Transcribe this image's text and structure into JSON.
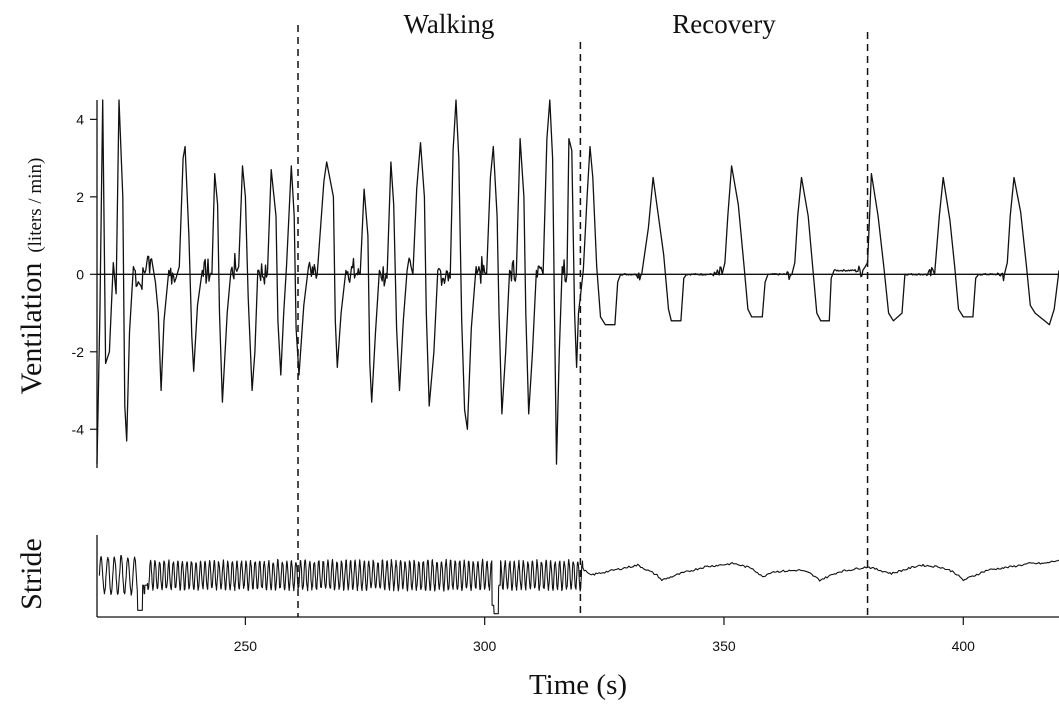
{
  "chart_data": {
    "type": "line",
    "xlabel": "Time (s)",
    "xlim": [
      219,
      420
    ],
    "x_ticks": [
      250,
      300,
      350,
      400
    ],
    "phase_boundaries": [
      261,
      320,
      380
    ],
    "phase_labels": [
      {
        "text": "Walking",
        "x": 291
      },
      {
        "text": "Recovery",
        "x": 350
      }
    ],
    "panels": [
      {
        "name": "ventilation",
        "ylabel_main": "Ventilation",
        "ylabel_unit": "(liters / min)",
        "ylim": [
          -5,
          4.5
        ],
        "y_ticks": [
          4,
          2,
          0,
          -2,
          -4
        ],
        "baseline": 0,
        "series": [
          {
            "points": [
              [
                219.0,
                -4.9
              ],
              [
                219.6,
                -1.0
              ],
              [
                220.2,
                4.5
              ],
              [
                220.8,
                -2.3
              ],
              [
                221.6,
                -2.0
              ],
              [
                222.4,
                0.3
              ],
              [
                223.0,
                -0.5
              ],
              [
                223.6,
                4.5
              ],
              [
                224.4,
                2.0
              ],
              [
                224.8,
                -3.4
              ],
              [
                225.2,
                -4.3
              ],
              [
                225.8,
                -1.5
              ],
              [
                226.6,
                0.2
              ],
              [
                228.2,
                -0.3
              ],
              [
                229.4,
                0.3
              ],
              [
                230.4,
                0.4
              ],
              [
                231.2,
                -0.2
              ],
              [
                231.8,
                -1.0
              ],
              [
                232.4,
                -3.0
              ],
              [
                233.0,
                -1.2
              ],
              [
                234.0,
                0.1
              ],
              [
                235.5,
                -0.1
              ],
              [
                236.2,
                0.2
              ],
              [
                237.0,
                3.0
              ],
              [
                237.4,
                3.3
              ],
              [
                238.2,
                1.0
              ],
              [
                238.8,
                -1.6
              ],
              [
                239.2,
                -2.5
              ],
              [
                240.0,
                -0.8
              ],
              [
                241.0,
                0.1
              ],
              [
                243.0,
                0.0
              ],
              [
                243.6,
                2.6
              ],
              [
                244.2,
                1.8
              ],
              [
                244.6,
                -1.0
              ],
              [
                245.2,
                -3.3
              ],
              [
                246.2,
                -1.0
              ],
              [
                247.0,
                0.1
              ],
              [
                248.6,
                0.2
              ],
              [
                249.4,
                2.8
              ],
              [
                250.0,
                2.0
              ],
              [
                250.6,
                -0.6
              ],
              [
                251.4,
                -3.0
              ],
              [
                252.0,
                -2.0
              ],
              [
                252.6,
                0.1
              ],
              [
                254.6,
                0.0
              ],
              [
                255.4,
                2.7
              ],
              [
                256.4,
                1.5
              ],
              [
                256.8,
                -1.2
              ],
              [
                257.4,
                -2.6
              ],
              [
                258.0,
                -1.0
              ],
              [
                258.6,
                0.2
              ],
              [
                259.6,
                2.8
              ],
              [
                260.2,
                1.5
              ],
              [
                260.6,
                -1.4
              ],
              [
                261.2,
                -2.6
              ],
              [
                262.2,
                -0.8
              ],
              [
                263.2,
                0.2
              ],
              [
                265.0,
                0.0
              ],
              [
                266.4,
                2.4
              ],
              [
                267.0,
                2.9
              ],
              [
                268.4,
                2.0
              ],
              [
                268.8,
                -1.2
              ],
              [
                269.2,
                -2.4
              ],
              [
                270.0,
                -1.0
              ],
              [
                271.0,
                0.1
              ],
              [
                274.0,
                0.0
              ],
              [
                274.8,
                2.2
              ],
              [
                275.6,
                1.0
              ],
              [
                276.0,
                -2.3
              ],
              [
                276.4,
                -3.3
              ],
              [
                277.2,
                -1.5
              ],
              [
                278.0,
                0.1
              ],
              [
                279.6,
                -0.1
              ],
              [
                280.4,
                2.9
              ],
              [
                281.0,
                1.8
              ],
              [
                281.6,
                -1.4
              ],
              [
                282.2,
                -3.0
              ],
              [
                283.0,
                -1.2
              ],
              [
                283.8,
                0.1
              ],
              [
                285.0,
                0.0
              ],
              [
                285.8,
                2.2
              ],
              [
                286.6,
                3.4
              ],
              [
                287.4,
                2.0
              ],
              [
                287.8,
                -1.0
              ],
              [
                288.4,
                -3.4
              ],
              [
                289.4,
                -2.0
              ],
              [
                290.2,
                0.1
              ],
              [
                292.8,
                -0.1
              ],
              [
                293.4,
                3.2
              ],
              [
                294.0,
                4.5
              ],
              [
                294.6,
                3.0
              ],
              [
                295.2,
                -1.2
              ],
              [
                295.8,
                -3.5
              ],
              [
                296.4,
                -4.0
              ],
              [
                297.2,
                -1.4
              ],
              [
                298.2,
                0.2
              ],
              [
                300.4,
                0.0
              ],
              [
                301.2,
                2.5
              ],
              [
                301.8,
                3.3
              ],
              [
                302.6,
                1.5
              ],
              [
                303.0,
                -1.0
              ],
              [
                303.6,
                -3.6
              ],
              [
                304.4,
                -2.0
              ],
              [
                305.2,
                0.1
              ],
              [
                306.6,
                0.0
              ],
              [
                307.4,
                3.5
              ],
              [
                308.2,
                2.0
              ],
              [
                308.6,
                -1.0
              ],
              [
                309.2,
                -3.6
              ],
              [
                310.0,
                -2.0
              ],
              [
                310.8,
                0.1
              ],
              [
                312.2,
                0.0
              ],
              [
                313.0,
                3.5
              ],
              [
                313.6,
                4.5
              ],
              [
                314.2,
                3.0
              ],
              [
                314.6,
                -1.0
              ],
              [
                315.0,
                -4.9
              ],
              [
                315.6,
                -2.0
              ],
              [
                316.2,
                0.2
              ],
              [
                317.2,
                0.0
              ],
              [
                317.6,
                3.5
              ],
              [
                318.2,
                3.2
              ],
              [
                318.8,
                -1.0
              ],
              [
                319.2,
                -2.4
              ],
              [
                319.6,
                -1.0
              ],
              [
                320.6,
                0.1
              ],
              [
                321.4,
                2.0
              ],
              [
                322.0,
                3.3
              ],
              [
                322.6,
                2.5
              ],
              [
                323.4,
                0.2
              ],
              [
                324.2,
                -1.1
              ],
              [
                325.2,
                -1.3
              ],
              [
                327.2,
                -1.3
              ],
              [
                327.8,
                -0.2
              ],
              [
                328.4,
                0.0
              ],
              [
                332.8,
                0.0
              ],
              [
                333.4,
                0.5
              ],
              [
                334.2,
                1.2
              ],
              [
                335.2,
                2.5
              ],
              [
                336.2,
                1.6
              ],
              [
                337.4,
                0.5
              ],
              [
                338.4,
                -0.9
              ],
              [
                339.0,
                -1.2
              ],
              [
                341.0,
                -1.2
              ],
              [
                341.6,
                -0.1
              ],
              [
                342.2,
                0.0
              ],
              [
                349.6,
                0.0
              ],
              [
                350.2,
                0.3
              ],
              [
                350.8,
                1.5
              ],
              [
                351.6,
                2.8
              ],
              [
                353.0,
                1.8
              ],
              [
                354.2,
                0.2
              ],
              [
                355.0,
                -0.9
              ],
              [
                355.8,
                -1.1
              ],
              [
                358.0,
                -1.1
              ],
              [
                358.6,
                -0.2
              ],
              [
                359.2,
                0.0
              ],
              [
                364.2,
                0.0
              ],
              [
                364.8,
                0.3
              ],
              [
                365.4,
                1.5
              ],
              [
                366.2,
                2.5
              ],
              [
                367.6,
                1.5
              ],
              [
                368.6,
                0.1
              ],
              [
                369.4,
                -1.0
              ],
              [
                370.2,
                -1.2
              ],
              [
                372.0,
                -1.2
              ],
              [
                372.4,
                -0.1
              ],
              [
                373.0,
                0.1
              ],
              [
                379.0,
                0.1
              ],
              [
                380.0,
                0.3
              ],
              [
                380.8,
                2.6
              ],
              [
                382.2,
                1.5
              ],
              [
                383.4,
                0.2
              ],
              [
                384.4,
                -1.0
              ],
              [
                385.4,
                -1.2
              ],
              [
                387.2,
                -1.0
              ],
              [
                387.8,
                0.0
              ],
              [
                394.0,
                0.0
              ],
              [
                395.0,
                1.5
              ],
              [
                395.8,
                2.5
              ],
              [
                397.2,
                1.4
              ],
              [
                398.2,
                0.2
              ],
              [
                399.0,
                -0.9
              ],
              [
                400.0,
                -1.1
              ],
              [
                402.0,
                -1.1
              ],
              [
                402.6,
                -0.1
              ],
              [
                403.2,
                0.0
              ],
              [
                408.6,
                0.0
              ],
              [
                409.2,
                0.3
              ],
              [
                409.8,
                1.5
              ],
              [
                410.6,
                2.5
              ],
              [
                412.0,
                1.6
              ],
              [
                413.2,
                0.2
              ],
              [
                414.0,
                -0.8
              ],
              [
                415.0,
                -1.0
              ],
              [
                417.0,
                -1.2
              ],
              [
                418.0,
                -1.3
              ],
              [
                419.0,
                -0.9
              ],
              [
                420.0,
                0.1
              ]
            ]
          }
        ]
      },
      {
        "name": "stride",
        "ylabel_main": "Stride",
        "ylabel_unit": "",
        "ylim": [
          -1.25,
          1.2
        ],
        "series": [
          {
            "walking_segments": [
              {
                "x_start": 219.5,
                "x_end": 229.0,
                "cycle_s": 1.4,
                "amplitude": 0.55
              },
              {
                "x_start": 229.0,
                "x_end": 320.5,
                "cycle_s": 0.95,
                "amplitude": 0.42
              }
            ],
            "points": [
              [
                228.0,
                -1.05
              ],
              [
                229.0,
                -0.3
              ],
              [
                302.0,
                -0.9
              ],
              [
                302.4,
                -1.15
              ],
              [
                302.8,
                -0.3
              ],
              [
                320.5,
                0.2
              ],
              [
                322.0,
                0.0
              ],
              [
                327.0,
                0.15
              ],
              [
                332.0,
                0.3
              ],
              [
                336.0,
                0.0
              ],
              [
                337.0,
                -0.15
              ],
              [
                341.0,
                0.05
              ],
              [
                346.0,
                0.25
              ],
              [
                352.0,
                0.35
              ],
              [
                356.0,
                0.2
              ],
              [
                358.0,
                -0.05
              ],
              [
                360.0,
                0.1
              ],
              [
                366.0,
                0.15
              ],
              [
                368.0,
                0.05
              ],
              [
                370.0,
                -0.15
              ],
              [
                374.0,
                0.1
              ],
              [
                380.0,
                0.25
              ],
              [
                385.0,
                0.05
              ],
              [
                391.0,
                0.3
              ],
              [
                395.0,
                0.25
              ],
              [
                398.0,
                0.1
              ],
              [
                400.0,
                -0.15
              ],
              [
                405.0,
                0.15
              ],
              [
                410.0,
                0.25
              ],
              [
                414.0,
                0.35
              ],
              [
                417.0,
                0.35
              ],
              [
                420.0,
                0.45
              ]
            ]
          }
        ]
      }
    ]
  }
}
